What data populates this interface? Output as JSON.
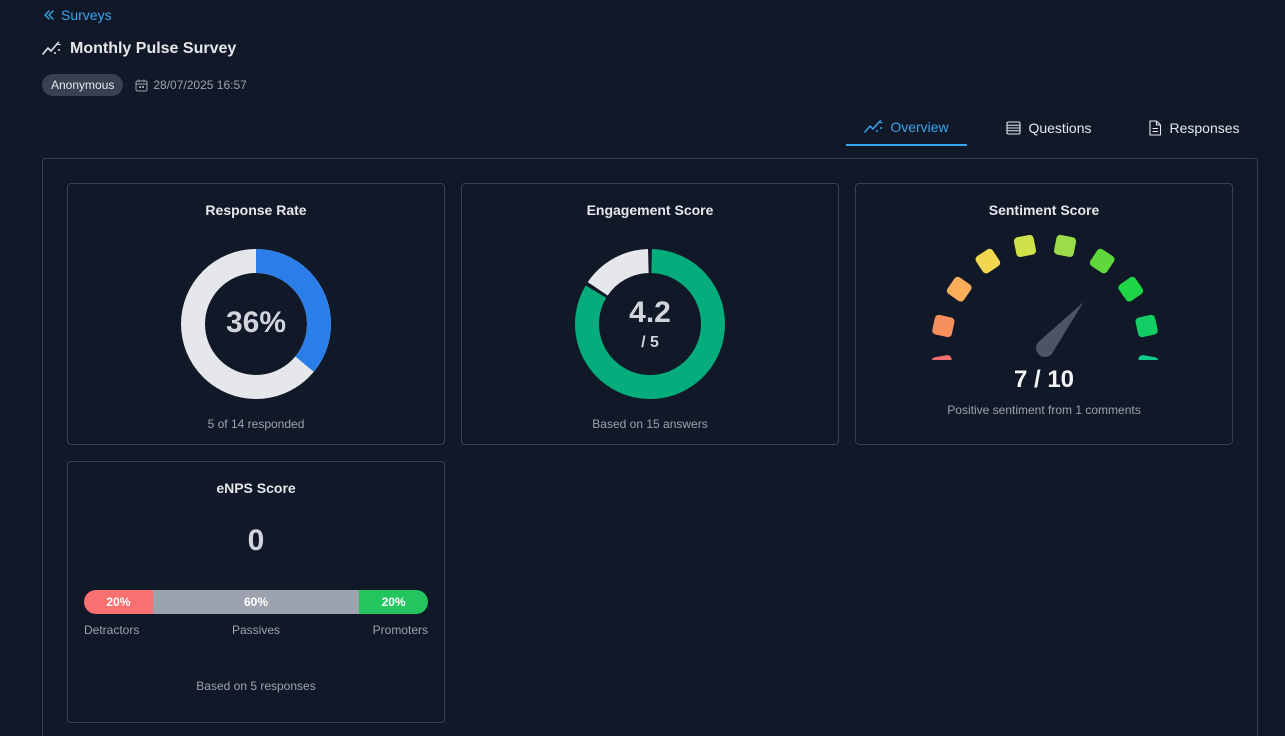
{
  "nav": {
    "back_label": "Surveys"
  },
  "survey": {
    "title": "Monthly Pulse Survey",
    "badge": "Anonymous",
    "date": "28/07/2025 16:57"
  },
  "tabs": [
    {
      "label": "Overview",
      "active": true
    },
    {
      "label": "Questions",
      "active": false
    },
    {
      "label": "Responses",
      "active": false
    }
  ],
  "colors": {
    "accent": "#38a5f0",
    "response_arc": "#2b7de9",
    "engagement_arc": "#05ad7c",
    "track": "#e5e7eb"
  },
  "response_rate": {
    "title": "Response Rate",
    "percent_label": "36%",
    "value": 0.36,
    "footnote": "5 of 14 responded"
  },
  "engagement": {
    "title": "Engagement Score",
    "score": 4.2,
    "score_label": "4.2",
    "max_label": "/ 5",
    "max": 5,
    "footnote": "Based on 15 answers"
  },
  "sentiment": {
    "title": "Sentiment Score",
    "score": 7,
    "max": 10,
    "score_label": "7 / 10",
    "footnote": "Positive sentiment from 1 comments",
    "segment_colors": [
      "#f46e6e",
      "#f78f5c",
      "#fbae5a",
      "#f2d650",
      "#cfe14a",
      "#9cdc4a",
      "#5fd83c",
      "#1ed447",
      "#14cc66",
      "#10cc8a"
    ]
  },
  "enps": {
    "title": "eNPS Score",
    "score_label": "0",
    "segments": [
      {
        "label": "Detractors",
        "percent": 20,
        "percent_label": "20%"
      },
      {
        "label": "Passives",
        "percent": 60,
        "percent_label": "60%"
      },
      {
        "label": "Promoters",
        "percent": 20,
        "percent_label": "20%"
      }
    ],
    "footnote": "Based on 5 responses"
  }
}
